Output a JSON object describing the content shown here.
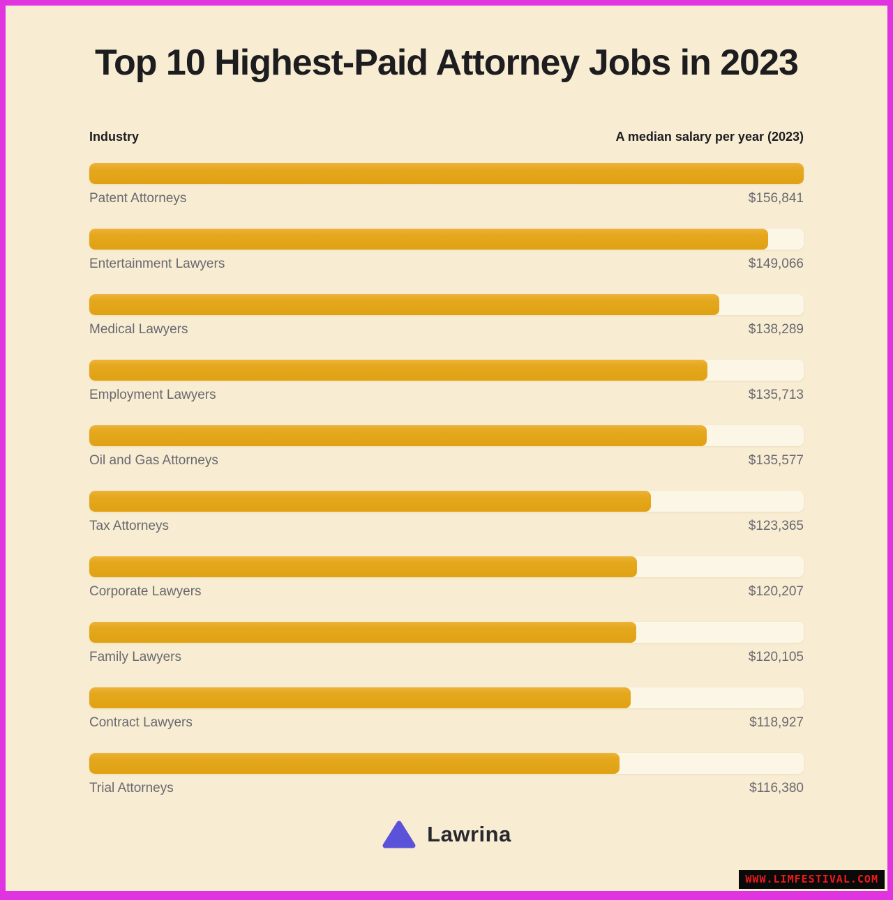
{
  "page": {
    "title": "Top 10 Highest-Paid Attorney Jobs in 2023"
  },
  "table": {
    "left_header": "Industry",
    "right_header": "A median salary per year (2023)"
  },
  "chart_data": {
    "type": "bar",
    "orientation": "horizontal",
    "title": "Top 10 Highest-Paid Attorney Jobs in 2023",
    "category_axis_label": "Industry",
    "value_axis_label": "A median salary per year (2023)",
    "categories": [
      "Patent Attorneys",
      "Entertainment Lawyers",
      "Medical Lawyers",
      "Employment Lawyers",
      "Oil and Gas Attorneys",
      "Tax Attorneys",
      "Corporate Lawyers",
      "Family Lawyers",
      "Contract Lawyers",
      "Trial Attorneys"
    ],
    "values": [
      156841,
      149066,
      138289,
      135713,
      135577,
      123365,
      120207,
      120105,
      118927,
      116380
    ],
    "value_labels": [
      "$156,841",
      "$149,066",
      "$138,289",
      "$135,713",
      "$135,577",
      "$123,365",
      "$120,207",
      "$120,105",
      "$118,927",
      "$116,380"
    ],
    "value_range": [
      0,
      156841
    ],
    "grid": false,
    "legend": false,
    "bar_color": "#E5A71D",
    "track_color": "#FCF6E7"
  },
  "branding": {
    "logo_text": "Lawrina",
    "logo_icon": "mountain-triangle-icon",
    "logo_icon_color": "#5A52D8"
  },
  "watermark": {
    "text": "WWW.LIMFESTIVAL.COM",
    "text_color": "#EF1A1A",
    "background_color": "#0A0A0A"
  },
  "colors": {
    "frame_border": "#DF34DF",
    "background": "#F8EDD3",
    "bar": "#E5A71D",
    "bar_track": "#FCF6E7",
    "heading_text": "#1D1D20",
    "label_text": "#68686E"
  }
}
